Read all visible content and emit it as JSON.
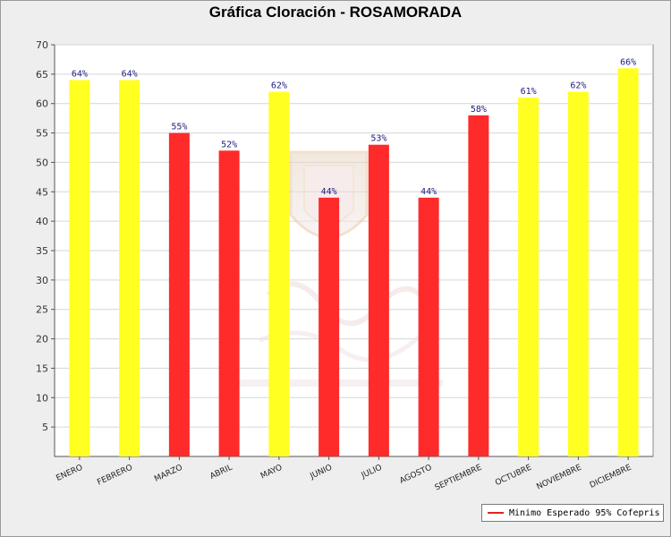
{
  "chart_data": {
    "type": "bar",
    "title": "Gráfica Cloración - ROSAMORADA",
    "categories": [
      "ENERO",
      "FEBRERO",
      "MARZO",
      "ABRIL",
      "MAYO",
      "JUNIO",
      "JULIO",
      "AGOSTO",
      "SEPTIEMBRE",
      "OCTUBRE",
      "NOVIEMBRE",
      "DICIEMBRE"
    ],
    "values": [
      64,
      64,
      55,
      52,
      62,
      44,
      53,
      44,
      58,
      61,
      62,
      66
    ],
    "value_labels": [
      "64%",
      "64%",
      "55%",
      "52%",
      "62%",
      "44%",
      "53%",
      "44%",
      "58%",
      "61%",
      "62%",
      "66%"
    ],
    "bar_colors": [
      "#ffff22",
      "#ffff22",
      "#ff2a2a",
      "#ff2a2a",
      "#ffff22",
      "#ff2a2a",
      "#ff2a2a",
      "#ff2a2a",
      "#ff2a2a",
      "#ffff22",
      "#ffff22",
      "#ffff22"
    ],
    "ylim": [
      0,
      70
    ],
    "yticks": [
      5,
      10,
      15,
      20,
      25,
      30,
      35,
      40,
      45,
      50,
      55,
      60,
      65,
      70
    ],
    "xlabel": "",
    "ylabel": "",
    "grid": true,
    "legend": {
      "position": "bottom-right",
      "label": "Minimo Esperado 95% Cofepris",
      "color": "#e02424"
    }
  }
}
